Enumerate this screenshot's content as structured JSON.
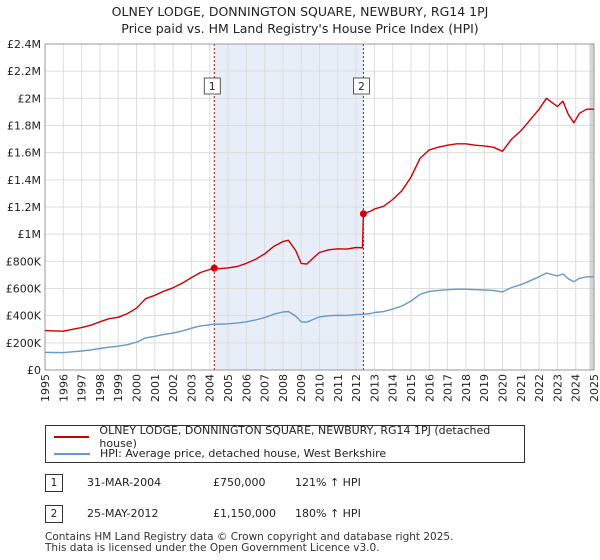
{
  "chart_data": {
    "type": "line",
    "title": "OLNEY LODGE, DONNINGTON SQUARE, NEWBURY, RG14 1PJ",
    "subtitle": "Price paid vs. HM Land Registry's House Price Index (HPI)",
    "xlabel": "",
    "ylabel": "",
    "xlim": [
      1995,
      2025
    ],
    "ylim": [
      0,
      2400000
    ],
    "x_ticks": [
      "1995",
      "1996",
      "1997",
      "1998",
      "1999",
      "2000",
      "2001",
      "2002",
      "2003",
      "2004",
      "2005",
      "2006",
      "2007",
      "2008",
      "2009",
      "2010",
      "2011",
      "2012",
      "2013",
      "2014",
      "2015",
      "2016",
      "2017",
      "2018",
      "2019",
      "2020",
      "2021",
      "2022",
      "2023",
      "2024",
      "2025"
    ],
    "y_ticks": [
      {
        "value": 0,
        "label": "£0"
      },
      {
        "value": 200000,
        "label": "£200K"
      },
      {
        "value": 400000,
        "label": "£400K"
      },
      {
        "value": 600000,
        "label": "£600K"
      },
      {
        "value": 800000,
        "label": "£800K"
      },
      {
        "value": 1000000,
        "label": "£1M"
      },
      {
        "value": 1200000,
        "label": "£1.2M"
      },
      {
        "value": 1400000,
        "label": "£1.4M"
      },
      {
        "value": 1600000,
        "label": "£1.6M"
      },
      {
        "value": 1800000,
        "label": "£1.8M"
      },
      {
        "value": 2000000,
        "label": "£2M"
      },
      {
        "value": 2200000,
        "label": "£2.2M"
      },
      {
        "value": 2400000,
        "label": "£2.4M"
      }
    ],
    "grid": true,
    "shaded_period": [
      2004.25,
      2012.4
    ],
    "series": [
      {
        "name": "OLNEY LODGE, DONNINGTON SQUARE, NEWBURY, RG14 1PJ (detached house)",
        "color": "#cc0000",
        "points": [
          [
            1995.0,
            290000
          ],
          [
            1995.5,
            288000
          ],
          [
            1996.0,
            286000
          ],
          [
            1996.5,
            300000
          ],
          [
            1997.0,
            312000
          ],
          [
            1997.5,
            330000
          ],
          [
            1998.0,
            355000
          ],
          [
            1998.5,
            378000
          ],
          [
            1999.0,
            388000
          ],
          [
            1999.5,
            415000
          ],
          [
            2000.0,
            455000
          ],
          [
            2000.5,
            525000
          ],
          [
            2001.0,
            550000
          ],
          [
            2001.5,
            580000
          ],
          [
            2002.0,
            605000
          ],
          [
            2002.5,
            640000
          ],
          [
            2003.0,
            680000
          ],
          [
            2003.5,
            718000
          ],
          [
            2004.0,
            740000
          ],
          [
            2004.25,
            750000
          ],
          [
            2004.5,
            746000
          ],
          [
            2005.0,
            752000
          ],
          [
            2005.5,
            762000
          ],
          [
            2006.0,
            785000
          ],
          [
            2006.5,
            815000
          ],
          [
            2007.0,
            855000
          ],
          [
            2007.5,
            910000
          ],
          [
            2008.0,
            945000
          ],
          [
            2008.3,
            955000
          ],
          [
            2008.7,
            880000
          ],
          [
            2009.0,
            785000
          ],
          [
            2009.3,
            780000
          ],
          [
            2009.7,
            830000
          ],
          [
            2010.0,
            865000
          ],
          [
            2010.5,
            885000
          ],
          [
            2011.0,
            892000
          ],
          [
            2011.5,
            890000
          ],
          [
            2012.0,
            902000
          ],
          [
            2012.35,
            900000
          ],
          [
            2012.4,
            1150000
          ],
          [
            2012.8,
            1170000
          ],
          [
            2013.0,
            1185000
          ],
          [
            2013.5,
            1205000
          ],
          [
            2014.0,
            1255000
          ],
          [
            2014.5,
            1320000
          ],
          [
            2015.0,
            1420000
          ],
          [
            2015.5,
            1560000
          ],
          [
            2016.0,
            1620000
          ],
          [
            2016.5,
            1640000
          ],
          [
            2017.0,
            1655000
          ],
          [
            2017.5,
            1665000
          ],
          [
            2018.0,
            1665000
          ],
          [
            2018.5,
            1655000
          ],
          [
            2019.0,
            1650000
          ],
          [
            2019.5,
            1640000
          ],
          [
            2020.0,
            1610000
          ],
          [
            2020.5,
            1700000
          ],
          [
            2021.0,
            1760000
          ],
          [
            2021.5,
            1840000
          ],
          [
            2022.0,
            1920000
          ],
          [
            2022.4,
            2000000
          ],
          [
            2022.7,
            1970000
          ],
          [
            2023.0,
            1940000
          ],
          [
            2023.3,
            1980000
          ],
          [
            2023.6,
            1880000
          ],
          [
            2023.9,
            1820000
          ],
          [
            2024.2,
            1890000
          ],
          [
            2024.6,
            1920000
          ],
          [
            2025.0,
            1920000
          ]
        ]
      },
      {
        "name": "HPI: Average price, detached house, West Berkshire",
        "color": "#6699cc",
        "points": [
          [
            1995.0,
            130000
          ],
          [
            1995.5,
            129000
          ],
          [
            1996.0,
            128000
          ],
          [
            1996.5,
            134000
          ],
          [
            1997.0,
            140000
          ],
          [
            1997.5,
            148000
          ],
          [
            1998.0,
            158000
          ],
          [
            1998.5,
            168000
          ],
          [
            1999.0,
            175000
          ],
          [
            1999.5,
            186000
          ],
          [
            2000.0,
            205000
          ],
          [
            2000.5,
            236000
          ],
          [
            2001.0,
            248000
          ],
          [
            2001.5,
            262000
          ],
          [
            2002.0,
            272000
          ],
          [
            2002.5,
            288000
          ],
          [
            2003.0,
            308000
          ],
          [
            2003.5,
            325000
          ],
          [
            2004.0,
            333000
          ],
          [
            2004.25,
            339000
          ],
          [
            2004.5,
            337000
          ],
          [
            2005.0,
            340000
          ],
          [
            2005.5,
            345000
          ],
          [
            2006.0,
            355000
          ],
          [
            2006.5,
            368000
          ],
          [
            2007.0,
            386000
          ],
          [
            2007.5,
            411000
          ],
          [
            2008.0,
            427000
          ],
          [
            2008.3,
            431000
          ],
          [
            2008.7,
            397000
          ],
          [
            2009.0,
            355000
          ],
          [
            2009.3,
            352000
          ],
          [
            2009.7,
            375000
          ],
          [
            2010.0,
            391000
          ],
          [
            2010.5,
            400000
          ],
          [
            2011.0,
            403000
          ],
          [
            2011.5,
            402000
          ],
          [
            2012.0,
            408000
          ],
          [
            2012.4,
            411000
          ],
          [
            2012.8,
            416000
          ],
          [
            2013.0,
            423000
          ],
          [
            2013.5,
            430000
          ],
          [
            2014.0,
            448000
          ],
          [
            2014.5,
            471000
          ],
          [
            2015.0,
            507000
          ],
          [
            2015.5,
            557000
          ],
          [
            2016.0,
            579000
          ],
          [
            2016.5,
            586000
          ],
          [
            2017.0,
            591000
          ],
          [
            2017.5,
            595000
          ],
          [
            2018.0,
            595000
          ],
          [
            2018.5,
            591000
          ],
          [
            2019.0,
            589000
          ],
          [
            2019.5,
            586000
          ],
          [
            2020.0,
            575000
          ],
          [
            2020.5,
            607000
          ],
          [
            2021.0,
            628000
          ],
          [
            2021.5,
            657000
          ],
          [
            2022.0,
            686000
          ],
          [
            2022.4,
            714000
          ],
          [
            2022.7,
            703000
          ],
          [
            2023.0,
            693000
          ],
          [
            2023.3,
            707000
          ],
          [
            2023.6,
            671000
          ],
          [
            2023.9,
            650000
          ],
          [
            2024.2,
            675000
          ],
          [
            2024.6,
            686000
          ],
          [
            2025.0,
            686000
          ]
        ]
      }
    ],
    "annotations": [
      {
        "label": "1",
        "x": 2004.25,
        "y": 750000
      },
      {
        "label": "2",
        "x": 2012.4,
        "y": 1150000
      }
    ]
  },
  "legend": {
    "property": "OLNEY LODGE, DONNINGTON SQUARE, NEWBURY, RG14 1PJ (detached house)",
    "hpi": "HPI: Average price, detached house, West Berkshire"
  },
  "transactions": [
    {
      "num": "1",
      "date": "31-MAR-2004",
      "price": "£750,000",
      "hpi": "121% ↑ HPI"
    },
    {
      "num": "2",
      "date": "25-MAY-2012",
      "price": "£1,150,000",
      "hpi": "180% ↑ HPI"
    }
  ],
  "footer": {
    "line1": "Contains HM Land Registry data © Crown copyright and database right 2025.",
    "line2": "This data is licensed under the Open Government Licence v3.0."
  },
  "colors": {
    "property": "#cc0000",
    "hpi": "#6699cc",
    "shade": "#e8eef8",
    "grid": "#dddddd",
    "marker_line": "#cc0000"
  }
}
